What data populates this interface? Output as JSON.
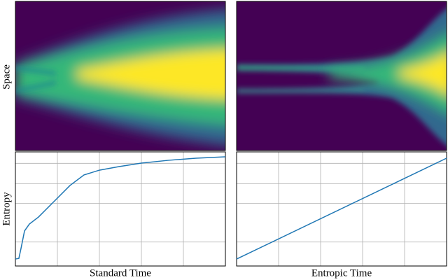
{
  "heatmaps": {
    "ylabel": "Space"
  },
  "chart_data": [
    {
      "type": "line",
      "xlabel": "Standard Time",
      "ylabel": "Entropy",
      "xlim": [
        0,
        5
      ],
      "ylim": [
        0,
        1
      ],
      "xticks": [
        1,
        2,
        3,
        4
      ],
      "yticks": [
        0.21,
        0.55,
        0.72,
        0.9
      ],
      "grid": true,
      "series": [
        {
          "color": "#1f77b4",
          "x": [
            0,
            0.083,
            0.133,
            0.217,
            0.333,
            0.55,
            0.717,
            0.967,
            1.3,
            1.633,
            2.0,
            2.467,
            3.0,
            3.633,
            4.3,
            5.0
          ],
          "values": [
            0.061,
            0.067,
            0.153,
            0.307,
            0.368,
            0.429,
            0.491,
            0.583,
            0.706,
            0.798,
            0.84,
            0.871,
            0.902,
            0.926,
            0.945,
            0.957
          ]
        }
      ]
    },
    {
      "type": "line",
      "xlabel": "Entropic Time",
      "xlim": [
        0,
        5
      ],
      "ylim": [
        0,
        1
      ],
      "xticks": [
        1,
        2,
        3,
        4
      ],
      "yticks": [
        0.21,
        0.55,
        0.72,
        0.9
      ],
      "grid": true,
      "series": [
        {
          "color": "#1f77b4",
          "x": [
            0,
            5
          ],
          "values": [
            0.061,
            0.945
          ]
        }
      ]
    }
  ]
}
